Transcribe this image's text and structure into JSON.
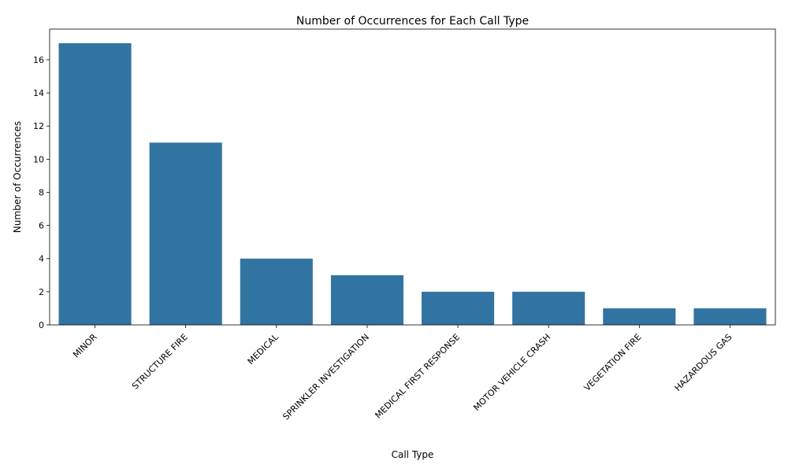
{
  "chart_data": {
    "type": "bar",
    "title": "Number of Occurrences for Each Call Type",
    "xlabel": "Call Type",
    "ylabel": "Number of Occurrences",
    "categories": [
      "MINOR",
      "STRUCTURE FIRE",
      "MEDICAL",
      "SPRINKLER INVESTIGATION",
      "MEDICAL FIRST RESPONSE",
      "MOTOR VEHICLE CRASH",
      "VEGETATION FIRE",
      "HAZARDOUS GAS"
    ],
    "values": [
      17,
      11,
      4,
      3,
      2,
      2,
      1,
      1
    ],
    "ylim": [
      0,
      17.85
    ],
    "yticks": [
      0,
      2,
      4,
      6,
      8,
      10,
      12,
      14,
      16
    ],
    "bar_color": "#3274a1",
    "grid": false,
    "legend": "none"
  }
}
